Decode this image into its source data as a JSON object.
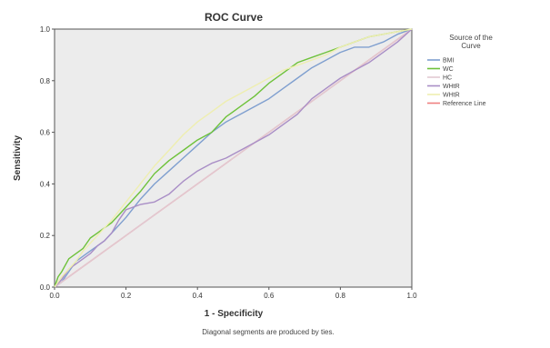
{
  "chart_data": {
    "type": "line",
    "title": "ROC Curve",
    "xlabel": "1 - Specificity",
    "ylabel": "Sensitivity",
    "xlim": [
      0,
      1
    ],
    "ylim": [
      0,
      1
    ],
    "x_ticks": [
      "0.0",
      "0.2",
      "0.4",
      "0.6",
      "0.8",
      "1.0"
    ],
    "y_ticks": [
      "0.0",
      "0.2",
      "0.4",
      "0.6",
      "0.8",
      "1.0"
    ],
    "grid": false,
    "legend_title": "Source of the Curve",
    "legend_position": "right",
    "footnote": "Diagonal segments are produced by ties.",
    "plot_background": "#ececec",
    "series": [
      {
        "name": "BMI",
        "color": "#7f9fcf",
        "x": [
          0,
          0.02,
          0.04,
          0.06,
          0.08,
          0.1,
          0.12,
          0.14,
          0.16,
          0.2,
          0.24,
          0.28,
          0.32,
          0.36,
          0.4,
          0.44,
          0.48,
          0.52,
          0.56,
          0.6,
          0.64,
          0.68,
          0.72,
          0.76,
          0.8,
          0.84,
          0.88,
          0.92,
          0.96,
          1.0
        ],
        "y": [
          0,
          0.02,
          0.06,
          0.1,
          0.12,
          0.14,
          0.16,
          0.18,
          0.21,
          0.27,
          0.34,
          0.4,
          0.45,
          0.5,
          0.55,
          0.6,
          0.64,
          0.67,
          0.7,
          0.73,
          0.77,
          0.81,
          0.85,
          0.88,
          0.91,
          0.93,
          0.93,
          0.95,
          0.98,
          1.0
        ]
      },
      {
        "name": "WC",
        "color": "#6ec23a",
        "x": [
          0,
          0.01,
          0.02,
          0.04,
          0.06,
          0.08,
          0.1,
          0.12,
          0.14,
          0.16,
          0.2,
          0.24,
          0.28,
          0.32,
          0.36,
          0.4,
          0.44,
          0.48,
          0.52,
          0.56,
          0.6,
          0.64,
          0.68,
          0.72,
          0.76,
          0.8,
          0.84,
          0.88,
          0.92,
          0.96,
          1.0
        ],
        "y": [
          0,
          0.04,
          0.06,
          0.11,
          0.13,
          0.15,
          0.19,
          0.21,
          0.23,
          0.25,
          0.31,
          0.37,
          0.44,
          0.49,
          0.53,
          0.57,
          0.6,
          0.66,
          0.7,
          0.74,
          0.79,
          0.83,
          0.87,
          0.89,
          0.91,
          0.93,
          0.95,
          0.97,
          0.98,
          0.99,
          1.0
        ]
      },
      {
        "name": "HC",
        "color": "#e2c9d2",
        "x": [
          0,
          0.05,
          0.1,
          0.15,
          0.2,
          0.25,
          0.3,
          0.35,
          0.4,
          0.45,
          0.5,
          0.55,
          0.6,
          0.65,
          0.7,
          0.75,
          0.8,
          0.85,
          0.9,
          0.95,
          1.0
        ],
        "y": [
          0,
          0.05,
          0.1,
          0.15,
          0.2,
          0.25,
          0.3,
          0.35,
          0.4,
          0.45,
          0.5,
          0.55,
          0.6,
          0.65,
          0.7,
          0.75,
          0.8,
          0.85,
          0.9,
          0.95,
          1.0
        ]
      },
      {
        "name": "WHtR",
        "color": "#a98ec6",
        "x": [
          0,
          0.02,
          0.04,
          0.06,
          0.08,
          0.1,
          0.12,
          0.14,
          0.16,
          0.18,
          0.2,
          0.24,
          0.28,
          0.32,
          0.36,
          0.4,
          0.44,
          0.48,
          0.52,
          0.56,
          0.6,
          0.64,
          0.68,
          0.72,
          0.76,
          0.8,
          0.84,
          0.88,
          0.92,
          0.96,
          1.0
        ],
        "y": [
          0,
          0.03,
          0.07,
          0.09,
          0.11,
          0.13,
          0.16,
          0.18,
          0.21,
          0.26,
          0.3,
          0.32,
          0.33,
          0.36,
          0.41,
          0.45,
          0.48,
          0.5,
          0.53,
          0.56,
          0.59,
          0.63,
          0.67,
          0.73,
          0.77,
          0.81,
          0.84,
          0.87,
          0.91,
          0.95,
          1.0
        ]
      },
      {
        "name": "WHtR",
        "color": "#eeeeb0",
        "x": [
          0,
          0.02,
          0.04,
          0.06,
          0.08,
          0.1,
          0.12,
          0.16,
          0.2,
          0.24,
          0.28,
          0.32,
          0.36,
          0.4,
          0.44,
          0.48,
          0.52,
          0.56,
          0.6,
          0.64,
          0.68,
          0.72,
          0.76,
          0.8,
          0.84,
          0.88,
          0.92,
          0.96,
          1.0
        ],
        "y": [
          0,
          0.04,
          0.07,
          0.1,
          0.14,
          0.17,
          0.2,
          0.26,
          0.33,
          0.4,
          0.47,
          0.53,
          0.59,
          0.64,
          0.68,
          0.72,
          0.75,
          0.78,
          0.81,
          0.84,
          0.86,
          0.88,
          0.9,
          0.93,
          0.95,
          0.97,
          0.98,
          0.99,
          1.0
        ]
      },
      {
        "name": "Reference Line",
        "color": "#ee7f7f",
        "x": [
          0,
          1
        ],
        "y": [
          0,
          1
        ]
      }
    ]
  }
}
